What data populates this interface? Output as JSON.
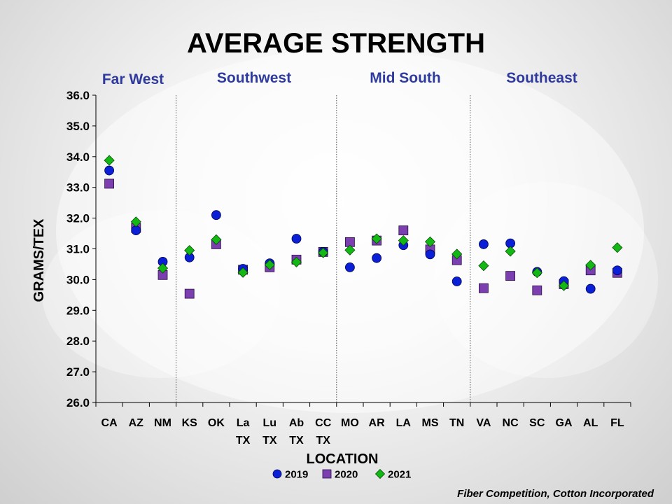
{
  "credit": "Fiber Competition, Cotton Incorporated",
  "chart_data": {
    "type": "scatter",
    "title": "AVERAGE STRENGTH",
    "xlabel": "LOCATION",
    "ylabel": "GRAMS/TEX",
    "ylim": [
      26.0,
      36.0
    ],
    "yticks": [
      "26.0",
      "27.0",
      "28.0",
      "29.0",
      "30.0",
      "31.0",
      "32.0",
      "33.0",
      "34.0",
      "35.0",
      "36.0"
    ],
    "categories": [
      [
        "CA"
      ],
      [
        "AZ"
      ],
      [
        "NM"
      ],
      [
        "KS"
      ],
      [
        "OK"
      ],
      [
        "La",
        "TX"
      ],
      [
        "Lu",
        "TX"
      ],
      [
        "Ab",
        "TX"
      ],
      [
        "CC",
        "TX"
      ],
      [
        "MO"
      ],
      [
        "AR"
      ],
      [
        "LA"
      ],
      [
        "MS"
      ],
      [
        "TN"
      ],
      [
        "VA"
      ],
      [
        "NC"
      ],
      [
        "SC"
      ],
      [
        "GA"
      ],
      [
        "AL"
      ],
      [
        "FL"
      ]
    ],
    "regions": [
      {
        "label": "Far West",
        "start": 0,
        "end": 2
      },
      {
        "label": "Southwest",
        "start": 3,
        "end": 8
      },
      {
        "label": "Mid South",
        "start": 9,
        "end": 13
      },
      {
        "label": "Southeast",
        "start": 14,
        "end": 19
      }
    ],
    "series": [
      {
        "name": "2019",
        "marker": "circle",
        "color": "#0a1fd6",
        "values": [
          33.55,
          31.6,
          30.58,
          30.72,
          32.1,
          30.35,
          30.53,
          31.33,
          30.9,
          30.4,
          30.7,
          31.12,
          30.82,
          29.94,
          31.15,
          31.18,
          30.25,
          29.95,
          29.7,
          30.3
        ]
      },
      {
        "name": "2020",
        "marker": "square",
        "color": "#7b3fb0",
        "values": [
          33.12,
          31.68,
          30.15,
          29.54,
          31.15,
          30.32,
          30.4,
          30.65,
          30.9,
          31.22,
          31.27,
          31.6,
          30.98,
          30.63,
          29.72,
          30.12,
          29.65,
          29.85,
          30.3,
          30.22
        ]
      },
      {
        "name": "2021",
        "marker": "diamond",
        "color": "#14b814",
        "values": [
          33.88,
          31.88,
          30.37,
          30.95,
          31.3,
          30.23,
          30.48,
          30.57,
          30.87,
          30.96,
          31.33,
          31.27,
          31.23,
          30.83,
          30.45,
          30.92,
          30.22,
          29.8,
          30.47,
          31.04
        ]
      }
    ],
    "legend_position": "bottom"
  }
}
